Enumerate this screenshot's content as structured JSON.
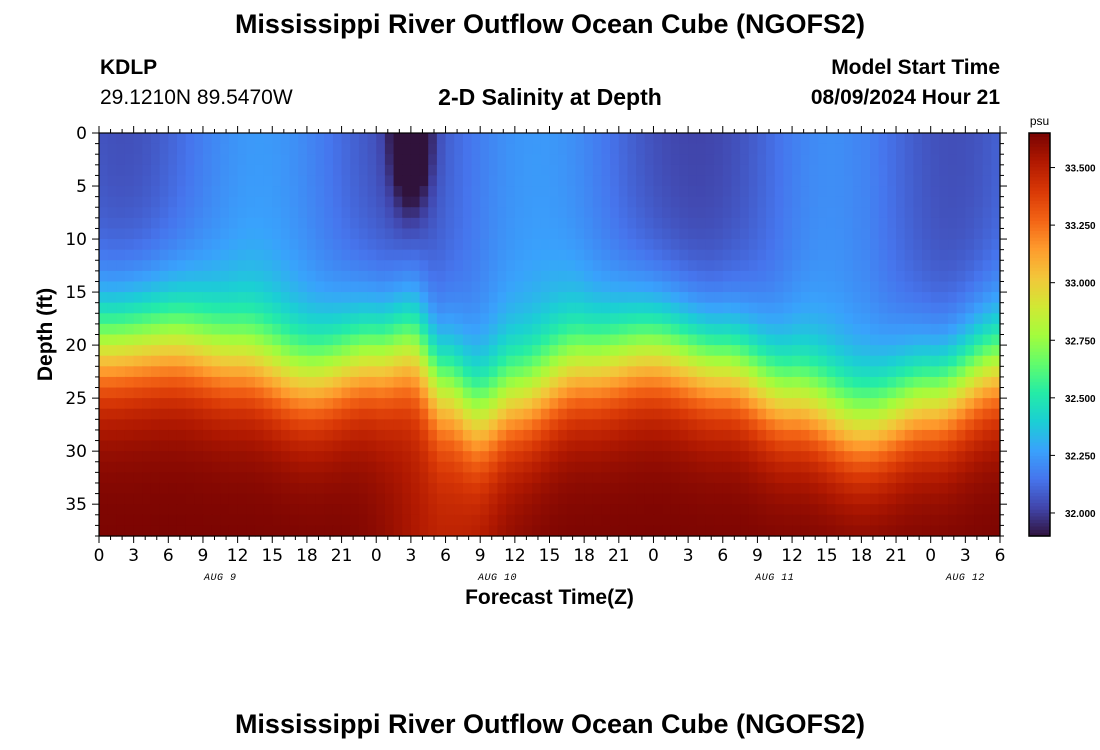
{
  "header": {
    "title": "Mississippi River Outflow Ocean Cube (NGOFS2)",
    "station_id": "KDLP",
    "station_coords": "29.1210N  89.5470W",
    "plot_title": "2-D Salinity at Depth",
    "model_start_label": "Model Start Time",
    "model_start_time": "08/09/2024 Hour 21"
  },
  "footer": {
    "title": "Mississippi River Outflow Ocean Cube (NGOFS2)"
  },
  "chart_data": {
    "type": "heatmap",
    "title": "2-D Salinity at Depth",
    "xlabel": "Forecast Time(Z)",
    "ylabel": "Depth (ft)",
    "x_hours_range": [
      0,
      78
    ],
    "x_tick_labels": [
      "0",
      "3",
      "6",
      "9",
      "12",
      "15",
      "18",
      "21",
      "0",
      "3",
      "6",
      "9",
      "12",
      "15",
      "18",
      "21",
      "0",
      "3",
      "6",
      "9",
      "12",
      "15",
      "18",
      "21",
      "0",
      "3",
      "6"
    ],
    "date_labels": [
      {
        "label": "AUG 9",
        "hour": 10.5
      },
      {
        "label": "AUG 10",
        "hour": 34.5
      },
      {
        "label": "AUG 11",
        "hour": 58.5
      },
      {
        "label": "AUG 12",
        "hour": 75
      }
    ],
    "y_tick_labels": [
      "0",
      "5",
      "10",
      "15",
      "20",
      "25",
      "30",
      "35"
    ],
    "y_ticks": [
      0,
      5,
      10,
      15,
      20,
      25,
      30,
      35
    ],
    "ylim": [
      38,
      0
    ],
    "colorbar": {
      "unit": "psu",
      "ticks": [
        32.0,
        32.25,
        32.5,
        32.75,
        33.0,
        33.25,
        33.5
      ],
      "tick_labels": [
        "32.000",
        "32.250",
        "32.500",
        "32.750",
        "33.000",
        "33.250",
        "33.500"
      ],
      "range": [
        31.9,
        33.65
      ]
    },
    "colormap": [
      "#30123b",
      "#4145ab",
      "#4675ed",
      "#39a2fc",
      "#1bcfd4",
      "#24eca6",
      "#61fc6c",
      "#a4fc3c",
      "#d1e834",
      "#f3c63a",
      "#fe9b2d",
      "#f36315",
      "#d93806",
      "#b11901",
      "#7a0402"
    ],
    "approx_field": {
      "note_depth_units": "ft",
      "surface_salinity_aug10_early": 31.95,
      "surface_salinity_range": [
        32.0,
        32.3
      ],
      "bottom_salinity_max": 33.65,
      "transition_depth_ft_by_hour": [
        [
          0,
          20
        ],
        [
          6,
          19.5
        ],
        [
          12,
          21
        ],
        [
          18,
          23
        ],
        [
          24,
          21
        ],
        [
          27,
          20
        ],
        [
          30,
          24
        ],
        [
          33,
          26.5
        ],
        [
          36,
          25
        ],
        [
          42,
          22
        ],
        [
          48,
          20.5
        ],
        [
          54,
          22
        ],
        [
          60,
          25
        ],
        [
          66,
          27.5
        ],
        [
          72,
          25
        ],
        [
          78,
          22
        ]
      ]
    }
  }
}
